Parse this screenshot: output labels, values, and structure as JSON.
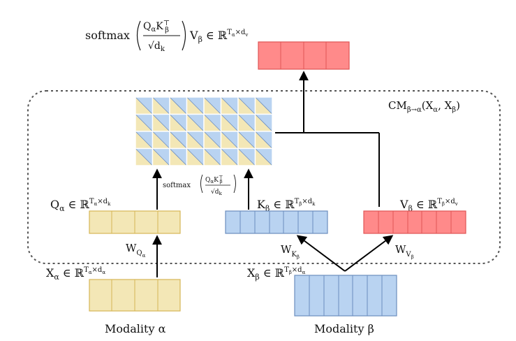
{
  "labels": {
    "output_formula_prefix": "softmax",
    "output_formula_fraction_num": "Q_αK_β^⊤",
    "output_formula_fraction_den": "√d_k",
    "output_formula_suffix": "V_β ∈ ℝ^{T_α×d_v}",
    "block_label": "CM_{β→α}(X_α, X_β)",
    "attention_label_prefix": "softmax",
    "attention_label_num": "Q_αK_β^⊤",
    "attention_label_den": "√d_k",
    "q_alpha": "Q_α ∈ ℝ^{T_α×d_k}",
    "k_beta": "K_β ∈ ℝ^{T_β×d_k}",
    "v_beta": "V_β ∈ ℝ^{T_β×d_v}",
    "w_q": "W_{Q_α}",
    "w_k": "W_{K_β}",
    "w_v": "W_{V_β}",
    "x_alpha": "X_α ∈ ℝ^{T_α×d_α}",
    "x_beta": "X_β ∈ ℝ^{T_β×d_α}",
    "modality_alpha": "Modality α",
    "modality_beta": "Modality β"
  },
  "colors": {
    "yellow_fill": "#f3e7b6",
    "yellow_stroke": "#d6b656",
    "blue_fill": "#b9d3f1",
    "blue_stroke": "#6c8ebf",
    "red_fill": "#ff8a8a",
    "red_stroke": "#e05555",
    "dashed": "#555555"
  }
}
